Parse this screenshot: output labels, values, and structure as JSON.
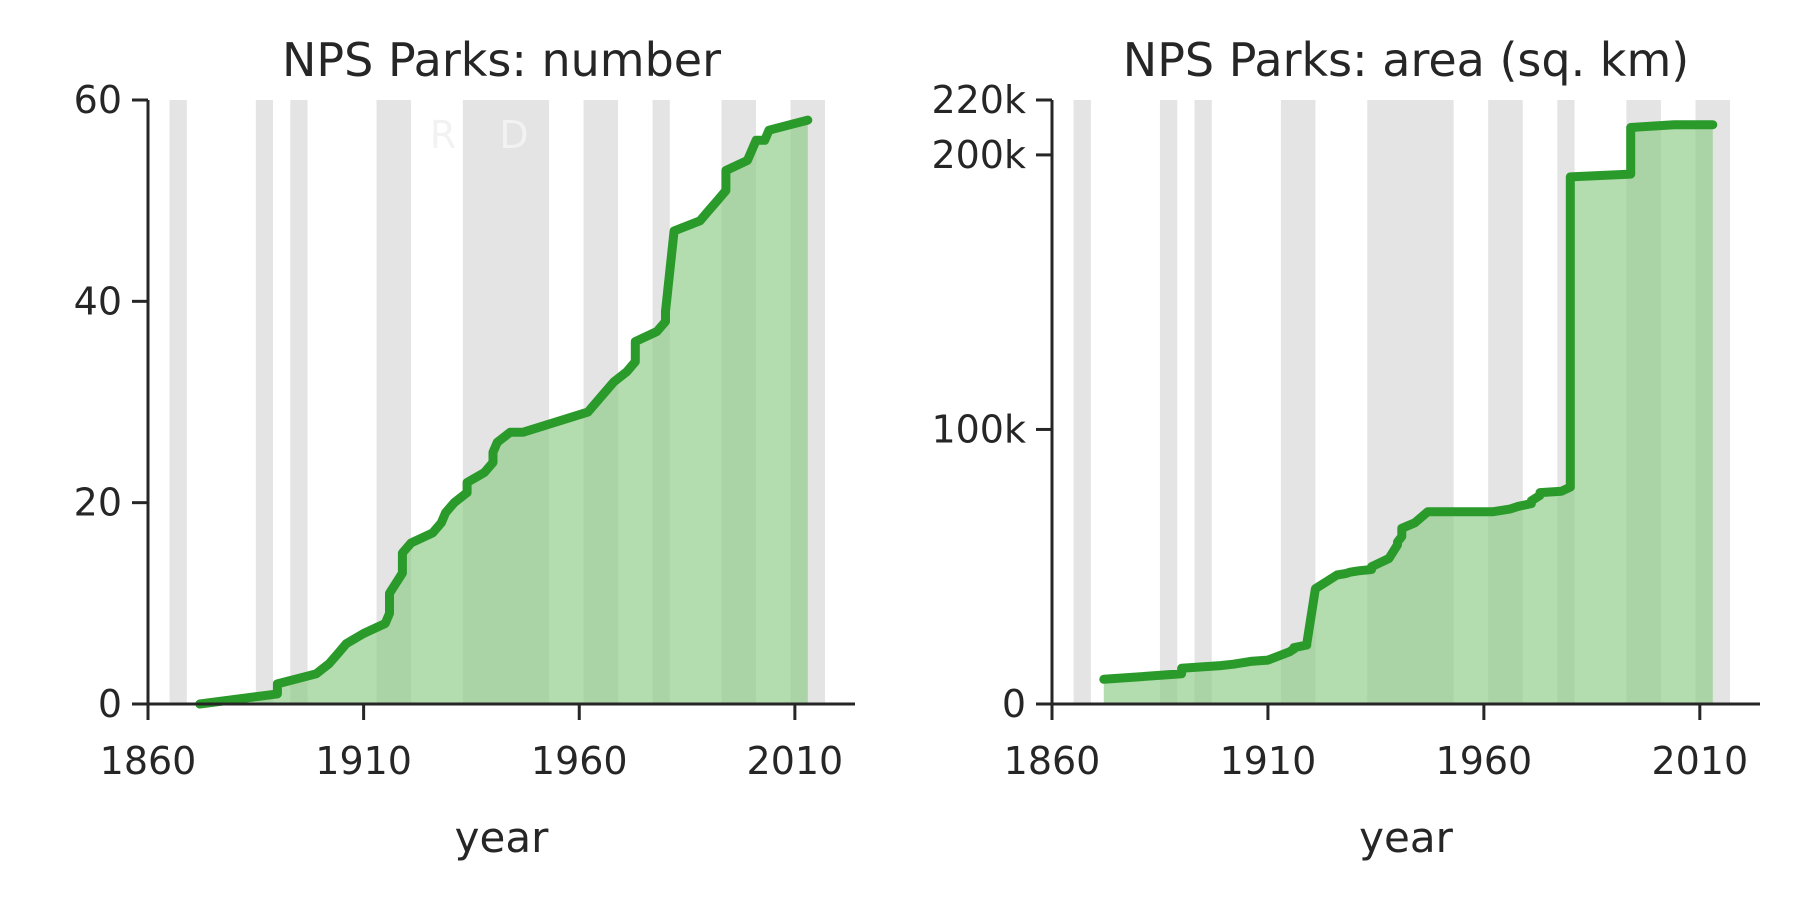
{
  "colors": {
    "line": "#2a9a2a",
    "fill": "#8fcd88",
    "band": "#e4e4e4",
    "axis": "#262626"
  },
  "chart_data": [
    {
      "type": "area",
      "title": "NPS Parks: number",
      "xlabel": "year",
      "ylabel": "",
      "xlim": [
        1860,
        2020
      ],
      "ylim": [
        0,
        60
      ],
      "xticks": [
        1860,
        1910,
        1960,
        2010
      ],
      "xtick_labels": [
        "1860",
        "1910",
        "1960",
        "2010"
      ],
      "yticks": [
        0,
        20,
        40,
        60
      ],
      "ytick_labels": [
        "0",
        "20",
        "40",
        "60"
      ],
      "bands_label_R": "R",
      "bands_label_D": "D",
      "bands": [
        [
          1865,
          1869
        ],
        [
          1885,
          1889
        ],
        [
          1893,
          1897
        ],
        [
          1913,
          1921
        ],
        [
          1933,
          1953
        ],
        [
          1961,
          1969
        ],
        [
          1977,
          1981
        ],
        [
          1993,
          2001
        ],
        [
          2009,
          2017
        ]
      ],
      "x": [
        1872,
        1890,
        1890,
        1899,
        1902,
        1904,
        1906,
        1910,
        1915,
        1916,
        1916,
        1919,
        1919,
        1921,
        1926,
        1928,
        1929,
        1931,
        1934,
        1934,
        1938,
        1940,
        1940,
        1941,
        1941,
        1944,
        1947,
        1962,
        1968,
        1971,
        1971,
        1973,
        1973,
        1978,
        1980,
        1980,
        1982,
        1988,
        1990,
        1992,
        1994,
        1994,
        1999,
        1999,
        2000,
        2001,
        2003,
        2004,
        2013
      ],
      "y": [
        0,
        1,
        2,
        3,
        4,
        5,
        6,
        7,
        8,
        9,
        11,
        13,
        15,
        16,
        17,
        18,
        19,
        20,
        21,
        22,
        23,
        24,
        25,
        26,
        26,
        27,
        27,
        29,
        32,
        33,
        33,
        34,
        36,
        37,
        38,
        39,
        47,
        48,
        49,
        50,
        51,
        53,
        54,
        54,
        55,
        56,
        56,
        57,
        58
      ]
    },
    {
      "type": "area",
      "title": "NPS Parks: area (sq. km)",
      "xlabel": "year",
      "ylabel": "",
      "xlim": [
        1860,
        2020
      ],
      "ylim": [
        0,
        220000
      ],
      "xticks": [
        1860,
        1910,
        1960,
        2010
      ],
      "xtick_labels": [
        "1860",
        "1910",
        "1960",
        "2010"
      ],
      "yticks": [
        0,
        100000,
        200000,
        220000
      ],
      "ytick_labels": [
        "0",
        "100k",
        "200k",
        "220k"
      ],
      "bands": [
        [
          1865,
          1869
        ],
        [
          1885,
          1889
        ],
        [
          1893,
          1897
        ],
        [
          1913,
          1921
        ],
        [
          1933,
          1953
        ],
        [
          1961,
          1969
        ],
        [
          1977,
          1981
        ],
        [
          1993,
          2001
        ],
        [
          2009,
          2017
        ]
      ],
      "x": [
        1872,
        1890,
        1890,
        1899,
        1902,
        1904,
        1906,
        1910,
        1915,
        1916,
        1916,
        1919,
        1919,
        1921,
        1926,
        1928,
        1929,
        1931,
        1934,
        1934,
        1938,
        1940,
        1940,
        1941,
        1941,
        1944,
        1947,
        1962,
        1966,
        1968,
        1971,
        1971,
        1973,
        1973,
        1978,
        1980,
        1980,
        1994,
        1994,
        1999,
        2004,
        2013
      ],
      "y": [
        9000,
        11000,
        13000,
        14000,
        14500,
        15000,
        15500,
        16000,
        19000,
        20000,
        20500,
        21500,
        22000,
        42000,
        47000,
        47500,
        48000,
        48500,
        49000,
        50000,
        53000,
        58000,
        59000,
        61000,
        64000,
        66000,
        70000,
        70000,
        71000,
        72000,
        73000,
        74000,
        76000,
        77000,
        77500,
        79000,
        192000,
        193000,
        210000,
        210500,
        211000,
        211000
      ]
    }
  ]
}
